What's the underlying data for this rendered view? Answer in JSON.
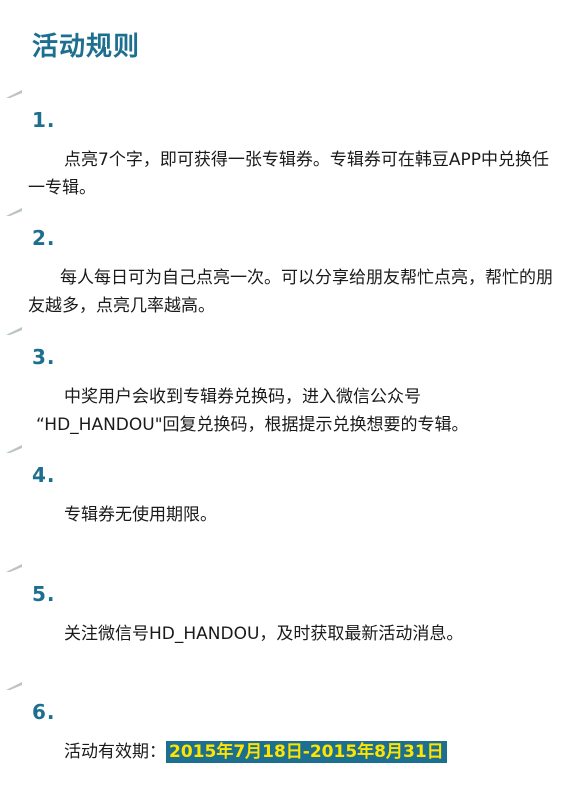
{
  "title": "活动规则",
  "rules": [
    {
      "number": "1.",
      "text": "点亮7个字，即可获得一张专辑券。专辑券可在韩豆APP中兑换任一专辑。"
    },
    {
      "number": "2.",
      "text": "每人每日可为自己点亮一次。可以分享给朋友帮忙点亮，帮忙的朋友越多，点亮几率越高。"
    },
    {
      "number": "3.",
      "text_line1": "中奖用户会收到专辑券兑换码，进入微信公众号",
      "text_line2": "“HD_HANDOU\"回复兑换码，根据提示兑换想要的专辑。"
    },
    {
      "number": "4.",
      "text": "专辑券无使用期限。"
    },
    {
      "number": "5.",
      "text": "关注微信号HD_HANDOU，及时获取最新活动消息。"
    },
    {
      "number": "6.",
      "label": "活动有效期：",
      "highlight": "2015年7月18日-2015年8月31日"
    }
  ],
  "colors": {
    "accent": "#1d6f8f",
    "highlight_text": "#ffe400"
  }
}
